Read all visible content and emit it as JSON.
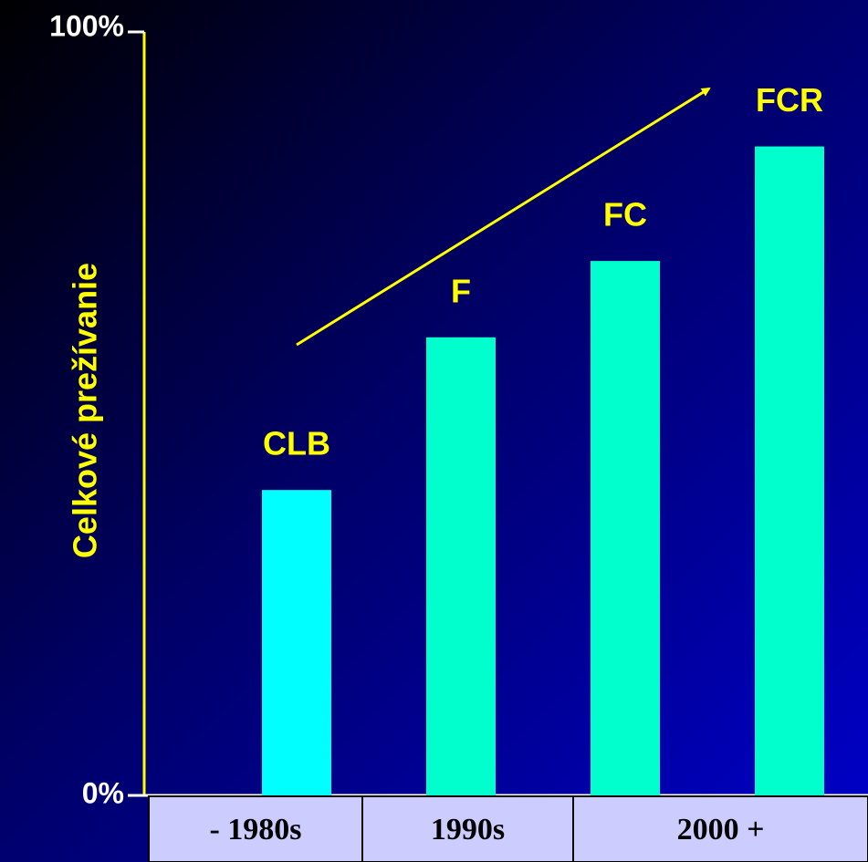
{
  "chart_data": {
    "type": "bar",
    "y_label": "Celkové prežívanie",
    "categories": [
      "CLB",
      "F",
      "FC",
      "FCR"
    ],
    "values": [
      40,
      60,
      70,
      85
    ],
    "colors": [
      "#00ffff",
      "#00ffcc",
      "#00ffcc",
      "#00ffcc"
    ],
    "periods": [
      "- 1980s",
      "1990s",
      "2000 +"
    ],
    "ylim": [
      0,
      100
    ],
    "yticks": [
      {
        "value": 0,
        "label": "0%"
      },
      {
        "value": 100,
        "label": "100%"
      }
    ]
  }
}
